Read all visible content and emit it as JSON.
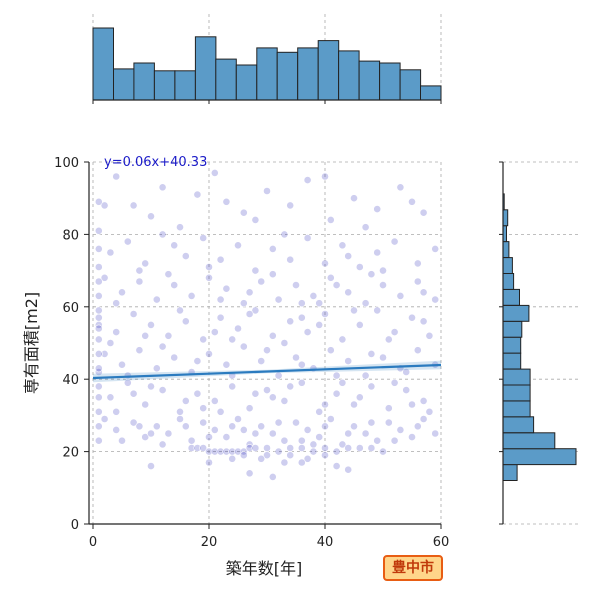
{
  "chart_data": {
    "type": "scatter",
    "xlabel": "築年数[年]",
    "ylabel": "専有面積[m2]",
    "xlim": [
      0,
      60
    ],
    "ylim": [
      0,
      100
    ],
    "x_ticks": [
      0,
      20,
      40,
      60
    ],
    "y_ticks": [
      0,
      20,
      40,
      60,
      80,
      100
    ],
    "grid": true,
    "regression": {
      "label": "y=0.06x+40.33",
      "slope": 0.06,
      "intercept": 40.33
    },
    "colors": {
      "points": "#1f1fb4",
      "bars": "#5b9bc8",
      "bar_edge": "#222222",
      "line": "#2b7bbf",
      "badge_fill": "#ffd58a",
      "badge_border": "#e85d13",
      "badge_text": "#c0390b"
    },
    "x_histogram": {
      "bin_edges": [
        0,
        3.53,
        7.06,
        10.59,
        14.12,
        17.65,
        21.18,
        24.71,
        28.24,
        31.76,
        35.29,
        38.82,
        42.35,
        45.88,
        49.41,
        52.94,
        56.47,
        60
      ],
      "counts": [
        148,
        64,
        76,
        60,
        60,
        130,
        84,
        72,
        107,
        98,
        107,
        122,
        101,
        80,
        76,
        62,
        29
      ]
    },
    "y_histogram": {
      "bin_edges": [
        12,
        16.4,
        20.8,
        25.2,
        29.6,
        34,
        38.4,
        42.8,
        47.2,
        51.6,
        56,
        60.4,
        64.8,
        69.2,
        73.6,
        78,
        82.4,
        86.8,
        91.2
      ],
      "counts": [
        12,
        62,
        44,
        26,
        23,
        23,
        23,
        15,
        15,
        16,
        22,
        14,
        9,
        8,
        5,
        3,
        4,
        1
      ]
    },
    "points": [
      [
        4,
        96
      ],
      [
        7,
        88
      ],
      [
        10,
        85
      ],
      [
        12,
        93
      ],
      [
        15,
        82
      ],
      [
        21,
        97
      ],
      [
        23,
        89
      ],
      [
        26,
        86
      ],
      [
        30,
        92
      ],
      [
        34,
        88
      ],
      [
        37,
        95
      ],
      [
        41,
        84
      ],
      [
        45,
        90
      ],
      [
        49,
        87
      ],
      [
        53,
        93
      ],
      [
        57,
        86
      ],
      [
        2,
        88
      ],
      [
        18,
        91
      ],
      [
        28,
        84
      ],
      [
        40,
        96
      ],
      [
        47,
        82
      ],
      [
        55,
        89
      ],
      [
        3,
        75
      ],
      [
        6,
        78
      ],
      [
        9,
        72
      ],
      [
        12,
        80
      ],
      [
        16,
        74
      ],
      [
        19,
        79
      ],
      [
        22,
        73
      ],
      [
        25,
        77
      ],
      [
        28,
        70
      ],
      [
        31,
        76
      ],
      [
        34,
        73
      ],
      [
        37,
        79
      ],
      [
        40,
        72
      ],
      [
        43,
        77
      ],
      [
        46,
        71
      ],
      [
        49,
        75
      ],
      [
        52,
        78
      ],
      [
        56,
        72
      ],
      [
        59,
        76
      ],
      [
        8,
        70
      ],
      [
        14,
        77
      ],
      [
        20,
        71
      ],
      [
        33,
        80
      ],
      [
        44,
        74
      ],
      [
        50,
        70
      ],
      [
        2,
        68
      ],
      [
        5,
        64
      ],
      [
        8,
        67
      ],
      [
        11,
        62
      ],
      [
        14,
        66
      ],
      [
        17,
        63
      ],
      [
        20,
        68
      ],
      [
        23,
        65
      ],
      [
        26,
        61
      ],
      [
        29,
        67
      ],
      [
        32,
        62
      ],
      [
        35,
        66
      ],
      [
        38,
        63
      ],
      [
        41,
        68
      ],
      [
        44,
        64
      ],
      [
        47,
        61
      ],
      [
        50,
        66
      ],
      [
        53,
        63
      ],
      [
        56,
        67
      ],
      [
        59,
        62
      ],
      [
        4,
        61
      ],
      [
        13,
        69
      ],
      [
        22,
        62
      ],
      [
        31,
        69
      ],
      [
        39,
        61
      ],
      [
        48,
        69
      ],
      [
        57,
        64
      ],
      [
        27,
        64
      ],
      [
        36,
        61
      ],
      [
        42,
        66
      ],
      [
        1,
        57
      ],
      [
        4,
        53
      ],
      [
        7,
        58
      ],
      [
        10,
        55
      ],
      [
        13,
        52
      ],
      [
        16,
        56
      ],
      [
        19,
        51
      ],
      [
        22,
        57
      ],
      [
        25,
        54
      ],
      [
        28,
        59
      ],
      [
        31,
        52
      ],
      [
        34,
        56
      ],
      [
        37,
        53
      ],
      [
        40,
        58
      ],
      [
        43,
        51
      ],
      [
        46,
        55
      ],
      [
        49,
        59
      ],
      [
        52,
        53
      ],
      [
        55,
        57
      ],
      [
        58,
        52
      ],
      [
        3,
        50
      ],
      [
        9,
        52
      ],
      [
        15,
        59
      ],
      [
        21,
        53
      ],
      [
        27,
        58
      ],
      [
        33,
        50
      ],
      [
        39,
        55
      ],
      [
        45,
        59
      ],
      [
        51,
        51
      ],
      [
        57,
        56
      ],
      [
        24,
        51
      ],
      [
        36,
        57
      ],
      [
        2,
        47
      ],
      [
        5,
        44
      ],
      [
        8,
        48
      ],
      [
        11,
        43
      ],
      [
        14,
        46
      ],
      [
        17,
        42
      ],
      [
        20,
        47
      ],
      [
        23,
        44
      ],
      [
        26,
        49
      ],
      [
        29,
        45
      ],
      [
        32,
        41
      ],
      [
        35,
        46
      ],
      [
        38,
        43
      ],
      [
        41,
        48
      ],
      [
        44,
        45
      ],
      [
        47,
        41
      ],
      [
        50,
        46
      ],
      [
        53,
        43
      ],
      [
        56,
        48
      ],
      [
        59,
        44
      ],
      [
        6,
        41
      ],
      [
        12,
        49
      ],
      [
        18,
        45
      ],
      [
        24,
        41
      ],
      [
        30,
        48
      ],
      [
        36,
        44
      ],
      [
        42,
        41
      ],
      [
        48,
        47
      ],
      [
        54,
        42
      ],
      [
        1,
        42
      ],
      [
        1,
        38
      ],
      [
        3,
        35
      ],
      [
        6,
        39
      ],
      [
        9,
        33
      ],
      [
        12,
        37
      ],
      [
        15,
        31
      ],
      [
        18,
        36
      ],
      [
        21,
        34
      ],
      [
        24,
        38
      ],
      [
        27,
        32
      ],
      [
        30,
        37
      ],
      [
        33,
        34
      ],
      [
        36,
        39
      ],
      [
        39,
        31
      ],
      [
        42,
        36
      ],
      [
        45,
        33
      ],
      [
        48,
        38
      ],
      [
        51,
        32
      ],
      [
        54,
        37
      ],
      [
        57,
        34
      ],
      [
        4,
        31
      ],
      [
        10,
        38
      ],
      [
        16,
        34
      ],
      [
        22,
        31
      ],
      [
        28,
        36
      ],
      [
        34,
        38
      ],
      [
        40,
        33
      ],
      [
        46,
        35
      ],
      [
        52,
        39
      ],
      [
        58,
        31
      ],
      [
        7,
        36
      ],
      [
        19,
        32
      ],
      [
        31,
        35
      ],
      [
        43,
        39
      ],
      [
        55,
        33
      ],
      [
        2,
        29
      ],
      [
        4,
        26
      ],
      [
        7,
        28
      ],
      [
        9,
        24
      ],
      [
        11,
        27
      ],
      [
        13,
        25
      ],
      [
        15,
        29
      ],
      [
        17,
        23
      ],
      [
        19,
        28
      ],
      [
        21,
        26
      ],
      [
        23,
        24
      ],
      [
        25,
        29
      ],
      [
        27,
        22
      ],
      [
        29,
        27
      ],
      [
        31,
        25
      ],
      [
        33,
        23
      ],
      [
        35,
        28
      ],
      [
        37,
        26
      ],
      [
        39,
        24
      ],
      [
        41,
        29
      ],
      [
        43,
        22
      ],
      [
        45,
        27
      ],
      [
        47,
        25
      ],
      [
        49,
        23
      ],
      [
        51,
        28
      ],
      [
        53,
        26
      ],
      [
        55,
        24
      ],
      [
        57,
        29
      ],
      [
        59,
        25
      ],
      [
        5,
        23
      ],
      [
        8,
        27
      ],
      [
        12,
        22
      ],
      [
        16,
        27
      ],
      [
        20,
        24
      ],
      [
        24,
        27
      ],
      [
        28,
        25
      ],
      [
        32,
        28
      ],
      [
        36,
        23
      ],
      [
        40,
        27
      ],
      [
        44,
        25
      ],
      [
        48,
        28
      ],
      [
        52,
        23
      ],
      [
        56,
        27
      ],
      [
        10,
        25
      ],
      [
        26,
        26
      ],
      [
        38,
        22
      ],
      [
        17,
        21
      ],
      [
        18,
        21
      ],
      [
        19,
        21
      ],
      [
        20,
        20
      ],
      [
        21,
        20
      ],
      [
        22,
        20
      ],
      [
        23,
        20
      ],
      [
        24,
        20
      ],
      [
        25,
        20
      ],
      [
        26,
        20
      ],
      [
        27,
        21
      ],
      [
        28,
        21
      ],
      [
        30,
        21
      ],
      [
        32,
        20
      ],
      [
        34,
        21
      ],
      [
        36,
        21
      ],
      [
        38,
        20
      ],
      [
        40,
        21
      ],
      [
        42,
        20
      ],
      [
        44,
        21
      ],
      [
        46,
        21
      ],
      [
        48,
        21
      ],
      [
        50,
        20
      ],
      [
        26,
        19
      ],
      [
        30,
        19
      ],
      [
        34,
        19
      ],
      [
        40,
        19
      ],
      [
        29,
        18
      ],
      [
        33,
        17
      ],
      [
        37,
        18
      ],
      [
        10,
        16
      ],
      [
        42,
        16
      ],
      [
        31,
        13
      ],
      [
        27,
        14
      ],
      [
        44,
        15
      ],
      [
        20,
        17
      ],
      [
        24,
        18
      ],
      [
        36,
        17
      ],
      [
        1,
        89
      ],
      [
        1,
        81
      ],
      [
        1,
        76
      ],
      [
        1,
        71
      ],
      [
        1,
        67
      ],
      [
        1,
        63
      ],
      [
        1,
        59
      ],
      [
        1,
        55
      ],
      [
        1,
        51
      ],
      [
        1,
        47
      ],
      [
        1,
        43
      ],
      [
        1,
        35
      ],
      [
        1,
        31
      ],
      [
        1,
        27
      ],
      [
        1,
        23
      ],
      [
        1,
        54
      ]
    ]
  },
  "badge": {
    "text": "豊中市"
  }
}
